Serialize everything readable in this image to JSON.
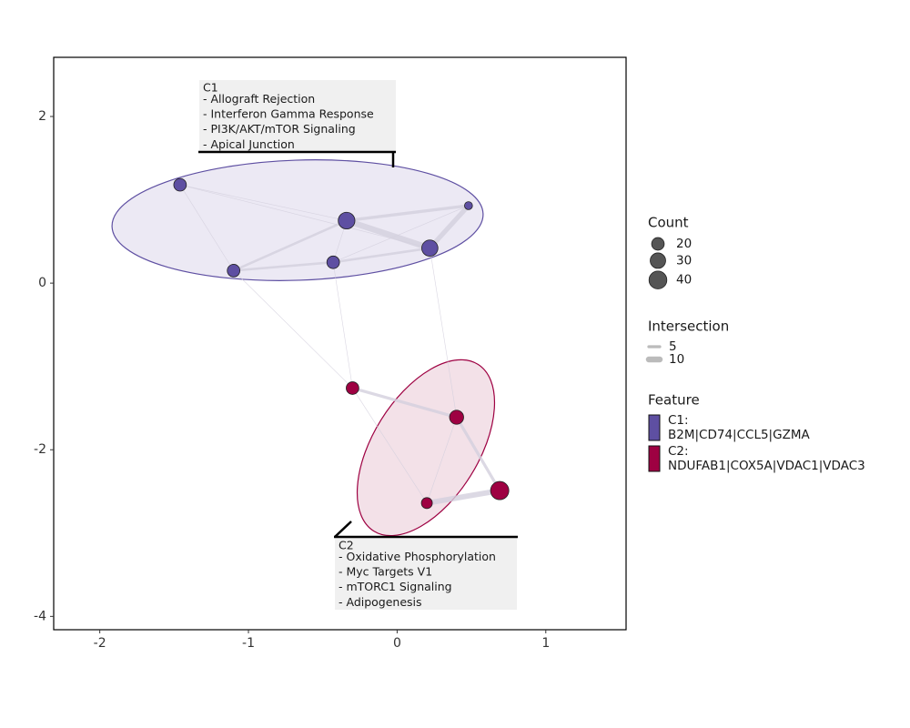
{
  "chart_data": {
    "type": "network",
    "xlim": [
      -2.31,
      1.54
    ],
    "ylim": [
      -4.16,
      2.71
    ],
    "xticks": [
      -2,
      -1,
      0,
      1
    ],
    "yticks": [
      -4,
      -2,
      0,
      2
    ],
    "edge_color": "#d3cfdd",
    "clusters": [
      {
        "name": "C1",
        "color": "#5e4fa2",
        "fill": "#ece9f4",
        "terms": [
          "- Allograft Rejection",
          "- Interferon Gamma Response",
          "- PI3K/AKT/mTOR Signaling",
          "- Apical Junction"
        ]
      },
      {
        "name": "C2",
        "color": "#9e0142",
        "fill": "#f3e1e8",
        "terms": [
          "- Oxidative Phosphorylation",
          "- Myc Targets V1",
          "- mTORC1 Signaling",
          "- Adipogenesis"
        ]
      }
    ],
    "nodes": [
      {
        "cluster": "C1",
        "x": -1.46,
        "y": 1.18,
        "count": 20
      },
      {
        "cluster": "C1",
        "x": -0.34,
        "y": 0.75,
        "count": 35
      },
      {
        "cluster": "C1",
        "x": 0.48,
        "y": 0.93,
        "count": 8
      },
      {
        "cluster": "C1",
        "x": 0.22,
        "y": 0.42,
        "count": 33
      },
      {
        "cluster": "C1",
        "x": -0.43,
        "y": 0.25,
        "count": 20
      },
      {
        "cluster": "C1",
        "x": -1.1,
        "y": 0.15,
        "count": 20
      },
      {
        "cluster": "C2",
        "x": -0.3,
        "y": -1.26,
        "count": 20
      },
      {
        "cluster": "C2",
        "x": 0.4,
        "y": -1.61,
        "count": 25
      },
      {
        "cluster": "C2",
        "x": 0.69,
        "y": -2.49,
        "count": 42
      },
      {
        "cluster": "C2",
        "x": 0.2,
        "y": -2.64,
        "count": 15
      }
    ],
    "edges": [
      {
        "source": 0,
        "target": 1,
        "weight": 1
      },
      {
        "source": 0,
        "target": 5,
        "weight": 1
      },
      {
        "source": 0,
        "target": 3,
        "weight": 1
      },
      {
        "source": 1,
        "target": 2,
        "weight": 5
      },
      {
        "source": 1,
        "target": 3,
        "weight": 10
      },
      {
        "source": 3,
        "target": 2,
        "weight": 8
      },
      {
        "source": 1,
        "target": 4,
        "weight": 1
      },
      {
        "source": 4,
        "target": 3,
        "weight": 4
      },
      {
        "source": 5,
        "target": 4,
        "weight": 4
      },
      {
        "source": 5,
        "target": 1,
        "weight": 4
      },
      {
        "source": 4,
        "target": 2,
        "weight": 1
      },
      {
        "source": 5,
        "target": 6,
        "weight": 1
      },
      {
        "source": 4,
        "target": 6,
        "weight": 1
      },
      {
        "source": 3,
        "target": 7,
        "weight": 1
      },
      {
        "source": 6,
        "target": 7,
        "weight": 5
      },
      {
        "source": 7,
        "target": 8,
        "weight": 5
      },
      {
        "source": 9,
        "target": 8,
        "weight": 9
      },
      {
        "source": 9,
        "target": 7,
        "weight": 1
      },
      {
        "source": 6,
        "target": 9,
        "weight": 1
      }
    ],
    "size_legend": {
      "title": "Count",
      "values": [
        20,
        30,
        40
      ]
    },
    "width_legend": {
      "title": "Intersection",
      "values": [
        5,
        10
      ]
    },
    "feature_legend": {
      "title": "Feature",
      "items": [
        {
          "label": "C1:",
          "genes": "B2M|CD74|CCL5|GZMA"
        },
        {
          "label": "C2:",
          "genes": "NDUFAB1|COX5A|VDAC1|VDAC3"
        }
      ]
    }
  }
}
